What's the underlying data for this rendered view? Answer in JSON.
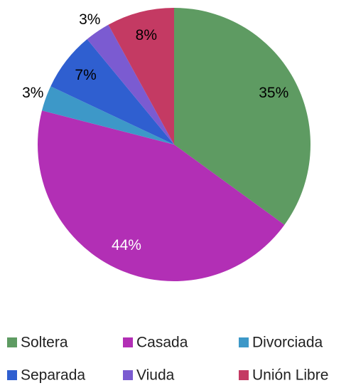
{
  "chart_data": {
    "type": "pie",
    "categories": [
      "Soltera",
      "Casada",
      "Divorciada",
      "Separada",
      "Viuda",
      "Unión Libre"
    ],
    "values": [
      35,
      44,
      3,
      7,
      3,
      8
    ],
    "value_labels": [
      "35%",
      "44%",
      "3%",
      "7%",
      "3%",
      "8%"
    ],
    "colors": [
      "#5e9b62",
      "#b22fb5",
      "#3d98c8",
      "#2f5fd0",
      "#7b5bd1",
      "#c43a63"
    ],
    "label_colors": [
      "#000000",
      "#ffffff",
      "#000000",
      "#000000",
      "#000000",
      "#000000"
    ],
    "legend": "bottom"
  }
}
